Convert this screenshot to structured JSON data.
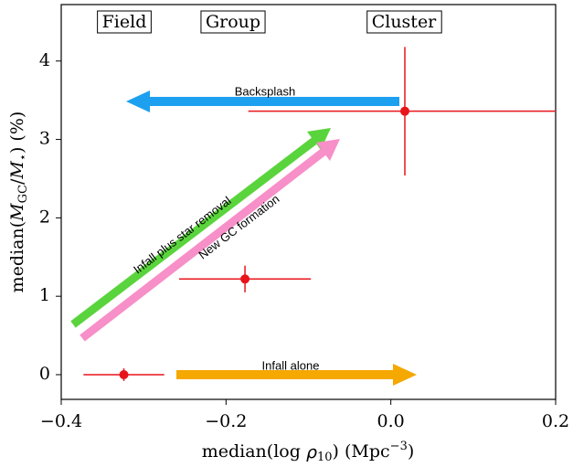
{
  "chart_data": {
    "type": "errorbar",
    "xlabel": [
      "median(log ",
      "ρ",
      "10",
      ") (Mpc",
      "−3",
      ")"
    ],
    "ylabel": [
      "median(",
      "M",
      "GC",
      "/",
      "M",
      "⋆",
      ") (%)"
    ],
    "xlim": [
      -0.4,
      0.2
    ],
    "ylim": [
      -0.315,
      4.72
    ],
    "xticks": [
      {
        "value": -0.4,
        "label": "−0.4"
      },
      {
        "value": -0.2,
        "label": "−0.2"
      },
      {
        "value": 0,
        "label": "0.0"
      },
      {
        "value": 0.2,
        "label": "0.2"
      }
    ],
    "yticks": [
      0,
      1,
      2,
      3,
      4
    ],
    "series": [
      {
        "color": "#e8141b",
        "x": [
          -0.324,
          -0.177,
          0.017
        ],
        "y": [
          0,
          1.22,
          3.36
        ],
        "xerr": [
          0.049,
          0.08,
          0.19
        ],
        "yerr": [
          0.08,
          0.17,
          0.82
        ]
      }
    ],
    "regions": [
      "Field",
      "Group",
      "Cluster"
    ],
    "annotations": [
      "Backsplash",
      "Infall plus star removal",
      "New GC formation",
      "Infall alone"
    ]
  }
}
